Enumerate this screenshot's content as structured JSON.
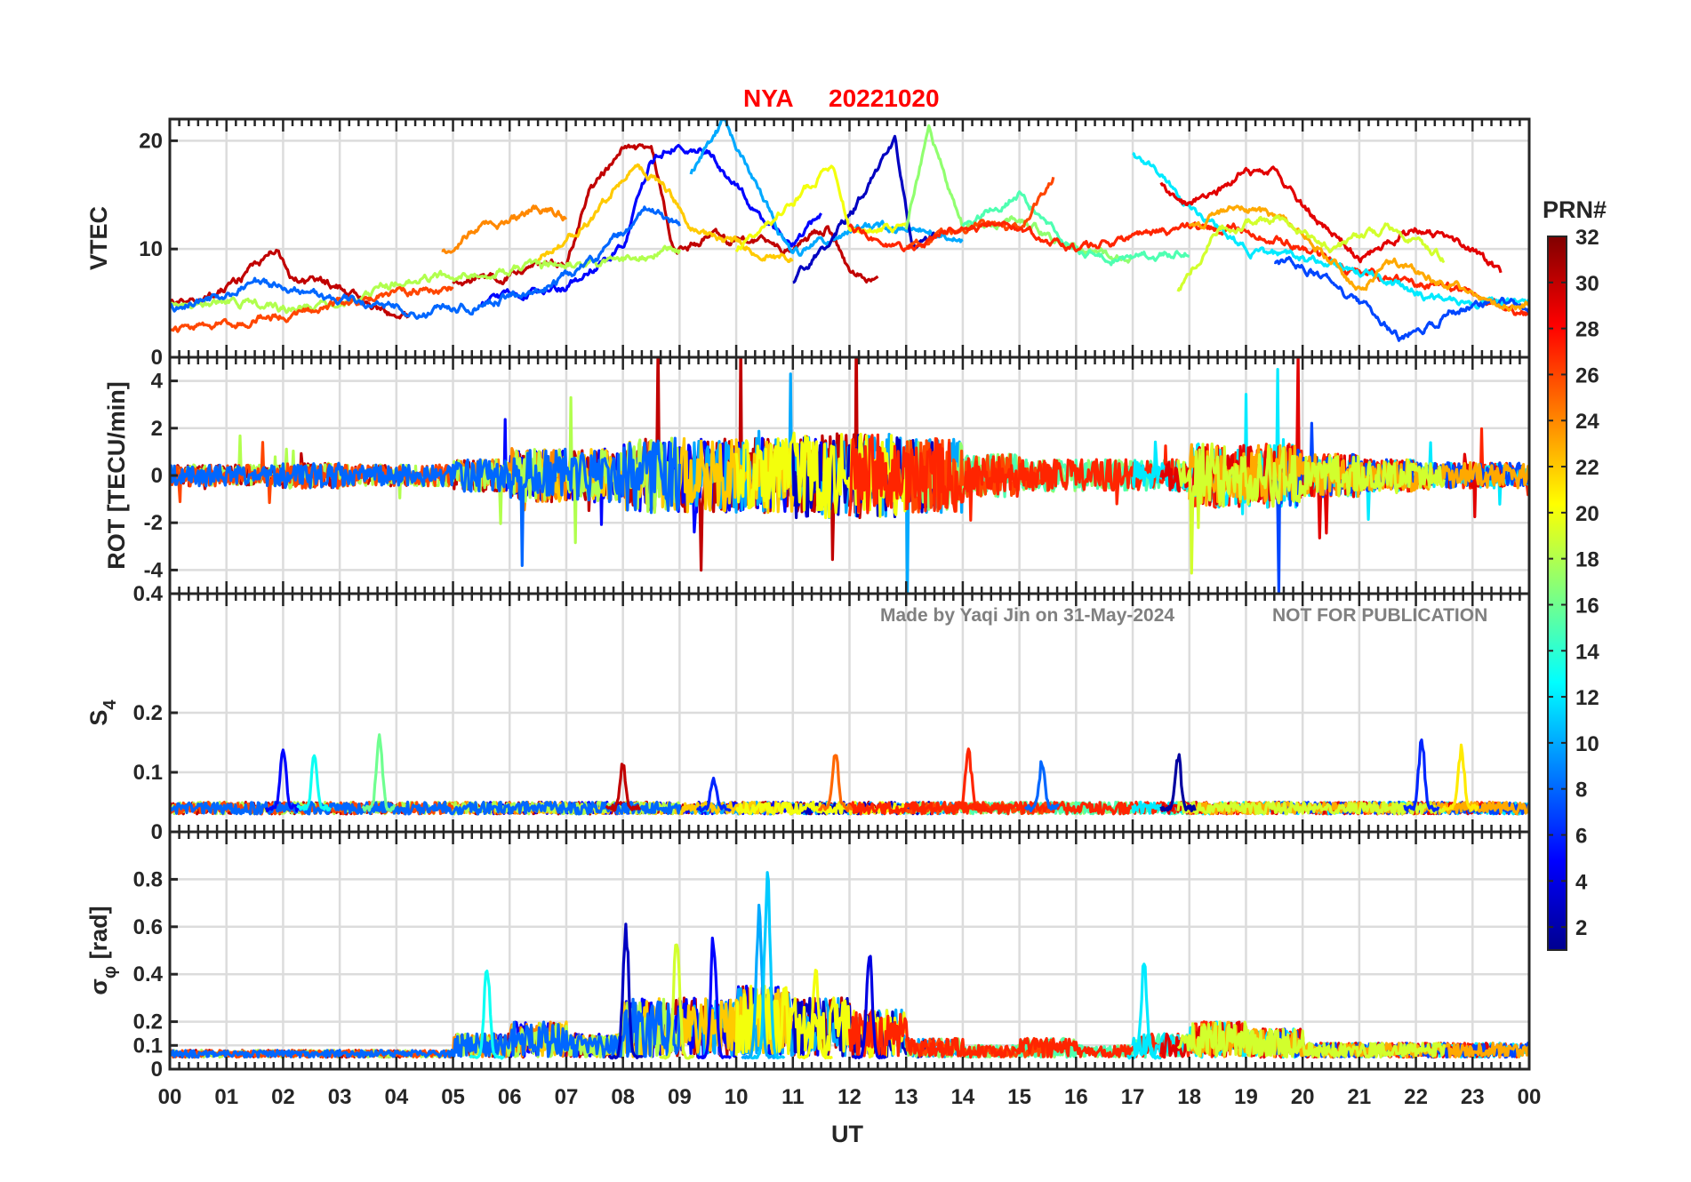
{
  "chart_data": {
    "type": "line",
    "title_station": "NYA",
    "title_date": "20221020",
    "watermark_left": "Made by Yaqi Jin on 31-May-2024",
    "watermark_right": "NOT FOR PUBLICATION",
    "xlabel": "UT",
    "xlim": [
      0,
      24
    ],
    "xtick_labels": [
      "00",
      "01",
      "02",
      "03",
      "04",
      "05",
      "06",
      "07",
      "08",
      "09",
      "10",
      "11",
      "12",
      "13",
      "14",
      "15",
      "16",
      "17",
      "18",
      "19",
      "20",
      "21",
      "22",
      "23",
      "00"
    ],
    "colorbar": {
      "label": "PRN#",
      "range": [
        1,
        32
      ],
      "ticks": [
        "2",
        "4",
        "6",
        "8",
        "10",
        "12",
        "14",
        "16",
        "18",
        "20",
        "22",
        "24",
        "26",
        "28",
        "30",
        "32"
      ]
    },
    "panels": [
      {
        "id": "vtec",
        "ylabel": "VTEC",
        "ylim": [
          0,
          22
        ],
        "ticks": [
          0,
          10,
          20
        ],
        "tick_labels": [
          "0",
          "10",
          "20"
        ]
      },
      {
        "id": "rot",
        "ylabel": "ROT [TECU/min]",
        "ylim": [
          -5,
          5
        ],
        "ticks": [
          -4,
          -2,
          0,
          2,
          4
        ],
        "tick_labels": [
          "-4",
          "-2",
          "0",
          "2",
          "4"
        ]
      },
      {
        "id": "s4",
        "ylabel": "S",
        "ylabel_sub": "4",
        "ylim": [
          0,
          0.4
        ],
        "ticks": [
          0,
          0.1,
          0.2,
          0.4
        ],
        "tick_labels": [
          "0",
          "0.1",
          "0.2",
          "0.4"
        ]
      },
      {
        "id": "sigma",
        "ylabel": "σ",
        "ylabel_sub": "φ",
        "ylabel_suffix": " [rad]",
        "ylim": [
          0,
          1
        ],
        "ticks": [
          0,
          0.1,
          0.2,
          0.4,
          0.6,
          0.8
        ],
        "tick_labels": [
          "0",
          "0.1",
          "0.2",
          "0.4",
          "0.6",
          "0.8"
        ]
      }
    ],
    "vtec_series": [
      {
        "prn": 30,
        "points": [
          [
            0,
            5
          ],
          [
            0.8,
            5.5
          ],
          [
            1.9,
            10
          ],
          [
            2.2,
            7
          ],
          [
            3,
            6.5
          ],
          [
            3.8,
            4
          ],
          [
            4.2,
            3.5
          ]
        ]
      },
      {
        "prn": 30,
        "points": [
          [
            5,
            7
          ],
          [
            6,
            7.5
          ],
          [
            7,
            9
          ],
          [
            7.4,
            15
          ],
          [
            8,
            19.5
          ],
          [
            8.5,
            19
          ],
          [
            8.9,
            10
          ],
          [
            9.5,
            11
          ],
          [
            10.2,
            10.5
          ],
          [
            11,
            10
          ],
          [
            11.6,
            12
          ],
          [
            12,
            8
          ],
          [
            12.5,
            7
          ]
        ]
      },
      {
        "prn": 5,
        "points": [
          [
            5.5,
            5
          ],
          [
            7,
            6.5
          ],
          [
            8,
            10
          ],
          [
            8.5,
            18
          ],
          [
            9,
            20
          ],
          [
            9.5,
            19
          ],
          [
            10,
            16
          ],
          [
            10.5,
            12
          ],
          [
            11,
            11
          ],
          [
            11.5,
            13
          ]
        ]
      },
      {
        "prn": 10,
        "points": [
          [
            9.2,
            17
          ],
          [
            9.8,
            22
          ],
          [
            10.5,
            14
          ],
          [
            11,
            9
          ],
          [
            12,
            12
          ],
          [
            13,
            12
          ],
          [
            14,
            11
          ]
        ]
      },
      {
        "prn": 24,
        "points": [
          [
            4.8,
            10
          ],
          [
            5.5,
            12
          ],
          [
            6,
            12.5
          ],
          [
            6.5,
            14
          ],
          [
            7,
            13
          ]
        ]
      },
      {
        "prn": 22,
        "points": [
          [
            6.5,
            9
          ],
          [
            7.5,
            13
          ],
          [
            8.2,
            18
          ],
          [
            8.7,
            16
          ],
          [
            9.2,
            12
          ],
          [
            10,
            10.5
          ],
          [
            11,
            9
          ]
        ]
      },
      {
        "prn": 18,
        "points": [
          [
            0,
            5
          ],
          [
            1,
            5
          ],
          [
            2,
            4.5
          ],
          [
            3,
            5
          ],
          [
            4,
            7
          ],
          [
            5,
            7.5
          ],
          [
            6,
            8
          ],
          [
            7,
            8.5
          ],
          [
            8,
            9
          ],
          [
            9,
            10
          ]
        ]
      },
      {
        "prn": 26,
        "points": [
          [
            0,
            2.5
          ],
          [
            1,
            3
          ],
          [
            2,
            4
          ],
          [
            3,
            5
          ],
          [
            4,
            6
          ],
          [
            5,
            6.5
          ]
        ]
      },
      {
        "prn": 8,
        "points": [
          [
            0,
            4.5
          ],
          [
            1,
            5.5
          ],
          [
            1.5,
            7
          ],
          [
            2.5,
            6
          ],
          [
            3.5,
            5
          ],
          [
            4.5,
            4
          ],
          [
            5.5,
            5
          ],
          [
            6.5,
            6
          ],
          [
            7.5,
            9
          ],
          [
            8.5,
            14
          ],
          [
            9,
            12
          ]
        ]
      },
      {
        "prn": 3,
        "points": [
          [
            11,
            7
          ],
          [
            12,
            13
          ],
          [
            12.8,
            20
          ],
          [
            13.1,
            10
          ],
          [
            13.5,
            11
          ]
        ]
      },
      {
        "prn": 20,
        "points": [
          [
            10,
            10
          ],
          [
            11,
            14
          ],
          [
            11.7,
            18
          ],
          [
            12,
            12
          ],
          [
            13,
            12
          ]
        ]
      },
      {
        "prn": 17,
        "points": [
          [
            13,
            12
          ],
          [
            13.4,
            21
          ],
          [
            14,
            12
          ],
          [
            15,
            13
          ],
          [
            16,
            10
          ],
          [
            17,
            9
          ]
        ]
      },
      {
        "prn": 15,
        "points": [
          [
            14,
            12
          ],
          [
            15,
            15
          ],
          [
            16,
            10
          ],
          [
            17,
            9
          ],
          [
            18,
            10
          ]
        ]
      },
      {
        "prn": 26,
        "points": [
          [
            13,
            10
          ],
          [
            14,
            12
          ],
          [
            15,
            12
          ],
          [
            15.6,
            17
          ]
        ]
      },
      {
        "prn": 27,
        "points": [
          [
            12,
            12
          ],
          [
            13,
            10
          ],
          [
            14,
            12
          ],
          [
            15,
            12
          ],
          [
            16,
            10
          ],
          [
            17,
            11
          ],
          [
            18,
            12
          ],
          [
            19,
            12
          ],
          [
            20,
            10
          ],
          [
            21,
            8
          ],
          [
            22,
            7
          ],
          [
            23,
            6
          ],
          [
            24,
            4
          ]
        ]
      },
      {
        "prn": 12,
        "points": [
          [
            17,
            19
          ],
          [
            18,
            14
          ],
          [
            19,
            10
          ],
          [
            20,
            9
          ],
          [
            21,
            8
          ],
          [
            22,
            6
          ],
          [
            23,
            5
          ],
          [
            24,
            5
          ]
        ]
      },
      {
        "prn": 29,
        "points": [
          [
            17.5,
            16
          ],
          [
            18,
            14
          ],
          [
            19,
            17
          ],
          [
            19.5,
            17
          ],
          [
            20,
            14
          ],
          [
            21,
            9
          ],
          [
            22,
            12
          ],
          [
            23,
            10
          ],
          [
            23.5,
            8
          ]
        ]
      },
      {
        "prn": 7,
        "points": [
          [
            19.5,
            9
          ],
          [
            20,
            8.5
          ],
          [
            21,
            5
          ],
          [
            21.7,
            2
          ],
          [
            22.3,
            3
          ],
          [
            22.6,
            4.5
          ],
          [
            23.5,
            5
          ],
          [
            24,
            4.5
          ]
        ]
      },
      {
        "prn": 23,
        "points": [
          [
            18,
            12
          ],
          [
            19,
            14
          ],
          [
            20,
            12
          ],
          [
            21,
            6
          ],
          [
            21.5,
            9
          ],
          [
            22.5,
            7
          ],
          [
            23.5,
            5
          ],
          [
            24,
            5
          ]
        ]
      },
      {
        "prn": 19,
        "points": [
          [
            17.8,
            6
          ],
          [
            18.5,
            12
          ],
          [
            19.5,
            13
          ],
          [
            20.5,
            10
          ],
          [
            21.5,
            12
          ],
          [
            22.5,
            9
          ]
        ]
      }
    ],
    "rot_envelope_hourly": [
      1,
      1,
      1.2,
      1,
      1,
      1.5,
      2.5,
      2.5,
      3.5,
      3.5,
      3.5,
      4,
      4,
      3.5,
      2,
      1.5,
      1.5,
      1.5,
      3,
      3,
      2,
      1.5,
      1.2,
      1.2
    ],
    "s4_baseline": 0.04,
    "s4_events": [
      {
        "prn": 5,
        "hour": 2.0,
        "peak": 0.15
      },
      {
        "prn": 13,
        "hour": 2.55,
        "peak": 0.13
      },
      {
        "prn": 16,
        "hour": 3.7,
        "peak": 0.17
      },
      {
        "prn": 30,
        "hour": 8.0,
        "peak": 0.12
      },
      {
        "prn": 6,
        "hour": 9.6,
        "peak": 0.1
      },
      {
        "prn": 25,
        "hour": 11.75,
        "peak": 0.15
      },
      {
        "prn": 27,
        "hour": 14.1,
        "peak": 0.15
      },
      {
        "prn": 8,
        "hour": 15.4,
        "peak": 0.13
      },
      {
        "prn": 2,
        "hour": 17.8,
        "peak": 0.14
      },
      {
        "prn": 6,
        "hour": 22.1,
        "peak": 0.17
      },
      {
        "prn": 21,
        "hour": 22.8,
        "peak": 0.15
      }
    ],
    "sigma_baseline": 0.05,
    "sigma_envelope_hourly": [
      0.03,
      0.03,
      0.03,
      0.03,
      0.03,
      0.1,
      0.15,
      0.1,
      0.25,
      0.25,
      0.3,
      0.25,
      0.2,
      0.08,
      0.05,
      0.08,
      0.05,
      0.1,
      0.15,
      0.12,
      0.06,
      0.06,
      0.06,
      0.06
    ],
    "sigma_events": [
      {
        "prn": 13,
        "hour": 5.6,
        "peak": 0.48
      },
      {
        "prn": 3,
        "hour": 8.05,
        "peak": 0.66
      },
      {
        "prn": 19,
        "hour": 8.95,
        "peak": 0.62
      },
      {
        "prn": 5,
        "hour": 9.6,
        "peak": 0.6
      },
      {
        "prn": 10,
        "hour": 10.4,
        "peak": 0.72
      },
      {
        "prn": 11,
        "hour": 10.55,
        "peak": 0.89
      },
      {
        "prn": 20,
        "hour": 11.4,
        "peak": 0.45
      },
      {
        "prn": 4,
        "hour": 12.35,
        "peak": 0.52
      },
      {
        "prn": 12,
        "hour": 17.2,
        "peak": 0.48
      }
    ]
  }
}
